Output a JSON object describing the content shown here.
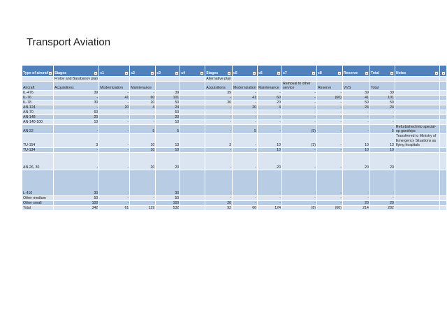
{
  "slide": {
    "title": "Transport Aviation"
  },
  "table": {
    "headers": [
      "Type of aircraft",
      "Stages",
      "c1",
      "c2",
      "c3",
      "c4",
      "Stages",
      "c5",
      "c6",
      "c7",
      "c8",
      "Reserve",
      "Total",
      "Notes",
      ""
    ],
    "rows": [
      [
        "",
        "Frolov and Barabanov plan",
        "",
        "",
        "",
        "",
        "Alternative plan",
        "",
        "",
        "",
        "",
        "",
        "",
        "",
        ""
      ],
      [
        "Aircraft",
        "Acquisitions",
        "Modernization",
        "Maintenance",
        "",
        "",
        "Acquisitions",
        "Modernization",
        "Maintenance",
        "Removal to other service",
        "Reserve",
        "VVS",
        "Total",
        "",
        ""
      ],
      [
        "IL-476",
        "39",
        "-",
        "-",
        "39",
        "",
        "39",
        "-",
        "-",
        "-",
        "-",
        "39",
        "39",
        "",
        ""
      ],
      [
        "IL-76",
        "-",
        "41",
        "60",
        "101",
        "",
        "-",
        "41",
        "60",
        "-",
        "(60)",
        "41",
        "101",
        "",
        ""
      ],
      [
        "IL-78",
        "30",
        "-",
        "20",
        "50",
        "",
        "30",
        "-",
        "20",
        "-",
        "-",
        "50",
        "50",
        "",
        ""
      ],
      [
        "AN-124",
        "-",
        "20",
        "4",
        "24",
        "",
        "-",
        "20",
        "4",
        "-",
        "-",
        "24",
        "24",
        "",
        ""
      ],
      [
        "AN-70",
        "60",
        "-",
        "-",
        "60",
        "",
        "-",
        "-",
        "-",
        "-",
        "-",
        "-",
        "-",
        "",
        ""
      ],
      [
        "AN-148",
        "20",
        "-",
        "-",
        "20",
        "",
        "-",
        "-",
        "-",
        "-",
        "-",
        "-",
        "-",
        "",
        ""
      ],
      [
        "AN-140-100",
        "10",
        "-",
        "-",
        "10",
        "",
        "-",
        "-",
        "-",
        "-",
        "-",
        "-",
        "-",
        "",
        ""
      ],
      [
        "AN-22",
        "-",
        "-",
        "5",
        "5",
        "",
        "-",
        "5",
        "-",
        "(5)",
        "-",
        "-",
        "5",
        "Refurbished into special-op gunships",
        ""
      ],
      [
        "TU-154",
        "3",
        "-",
        "10",
        "13",
        "",
        "3",
        "-",
        "10",
        "(3)",
        "-",
        "10",
        "13",
        "Transferred to Ministry of Emergency Situations as flying hospitals",
        ""
      ],
      [
        "TU-134",
        "-",
        "-",
        "10",
        "10",
        "",
        "-",
        "-",
        "10",
        "-",
        "-",
        "10",
        "10",
        "",
        ""
      ],
      [
        "AN-26, 30",
        "-",
        "-",
        "20",
        "20",
        "",
        "-",
        "-",
        "20",
        "-",
        "-",
        "20",
        "20",
        "",
        ""
      ],
      [
        "L-410",
        "30",
        "-",
        "-",
        "30",
        "",
        "-",
        "-",
        "-",
        "-",
        "-",
        "-",
        "-",
        "",
        ""
      ],
      [
        "Other medium",
        "50",
        "-",
        "-",
        "50",
        "",
        "-",
        "-",
        "-",
        "-",
        "-",
        "-",
        "-",
        "",
        ""
      ],
      [
        "Other small",
        "100",
        "-",
        "-",
        "100",
        "",
        "20",
        "-",
        "-",
        "-",
        "-",
        "20",
        "20",
        "",
        ""
      ],
      [
        "Total",
        "342",
        "61",
        "129",
        "532",
        "",
        "92",
        "66",
        "124",
        "(8)",
        "(60)",
        "214",
        "282",
        "",
        ""
      ]
    ]
  }
}
